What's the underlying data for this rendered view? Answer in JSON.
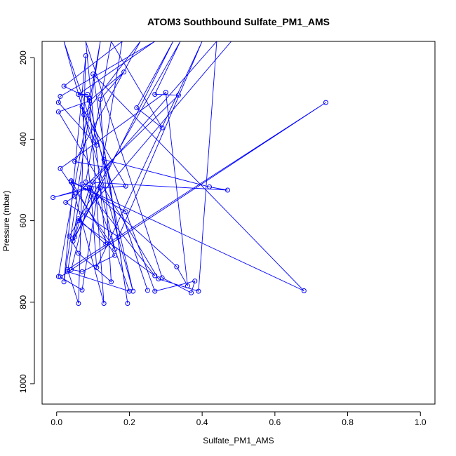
{
  "chart_data": {
    "type": "line",
    "title": "ATOM3 Southbound Sulfate_PM1_AMS",
    "xlabel": "Sulfate_PM1_AMS",
    "ylabel": "Pressure (mbar)",
    "xlim": [
      -0.04,
      1.04
    ],
    "ylim": [
      1050,
      160
    ],
    "y_reversed": true,
    "x_ticks": [
      0.0,
      0.2,
      0.4,
      0.6,
      0.8,
      1.0
    ],
    "x_tick_labels": [
      "0.0",
      "0.2",
      "0.4",
      "0.6",
      "0.8",
      "1.0"
    ],
    "y_ticks": [
      200,
      400,
      600,
      800,
      1000
    ],
    "y_tick_labels": [
      "200",
      "400",
      "600",
      "800",
      "1000"
    ],
    "grid": false,
    "series_color": "#0000ff",
    "series": [
      {
        "marker": "open-circle",
        "points": [
          [
            0.005,
            737
          ],
          [
            0.12,
            160
          ],
          [
            0.02,
            750
          ],
          [
            0.08,
            195
          ],
          [
            0.06,
            803
          ],
          [
            0.03,
            720
          ],
          [
            0.74,
            310
          ],
          [
            0.01,
            738
          ],
          [
            0.07,
            770
          ],
          [
            0.18,
            160
          ],
          [
            0.02,
            270
          ],
          [
            0.09,
            300
          ],
          [
            0.13,
            803
          ],
          [
            0.04,
            505
          ],
          [
            0.68,
            772
          ],
          [
            0.1,
            240
          ],
          [
            0.195,
            803
          ],
          [
            0.14,
            470
          ],
          [
            0.05,
            455
          ],
          [
            0.23,
            160
          ],
          [
            0.075,
            340
          ],
          [
            0.11,
            415
          ],
          [
            0.005,
            310
          ],
          [
            0.01,
            295
          ],
          [
            0.27,
            160
          ],
          [
            0.06,
            290
          ],
          [
            0.085,
            290
          ],
          [
            0.21,
            773
          ],
          [
            0.02,
            160
          ],
          [
            0.25,
            771
          ],
          [
            0.13,
            450
          ],
          [
            0.42,
            517
          ],
          [
            0.47,
            525
          ],
          [
            0.08,
            505
          ],
          [
            0.15,
            160
          ],
          [
            0.29,
            372
          ],
          [
            0.22,
            323
          ],
          [
            0.32,
            160
          ],
          [
            0.05,
            640
          ],
          [
            0.09,
            520
          ],
          [
            0.33,
            713
          ],
          [
            0.36,
            760
          ],
          [
            0.3,
            285
          ],
          [
            0.01,
            472
          ],
          [
            0.16,
            670
          ],
          [
            0.12,
            520
          ],
          [
            0.19,
            515
          ],
          [
            0.07,
            320
          ],
          [
            0.095,
            540
          ],
          [
            0.11,
            715
          ],
          [
            0.4,
            160
          ],
          [
            0.17,
            640
          ],
          [
            0.025,
            555
          ],
          [
            0.05,
            540
          ],
          [
            0.335,
            292
          ],
          [
            0.27,
            290
          ],
          [
            0.34,
            160
          ],
          [
            0.035,
            638
          ],
          [
            0.06,
            680
          ],
          [
            0.15,
            750
          ],
          [
            0.12,
            302
          ],
          [
            0.185,
            235
          ],
          [
            0.09,
            306
          ],
          [
            0.005,
            333
          ],
          [
            0.28,
            743
          ],
          [
            0.39,
            773
          ],
          [
            0.44,
            160
          ],
          [
            0.1,
            505
          ],
          [
            0.04,
            720
          ],
          [
            0.07,
            725
          ],
          [
            0.16,
            685
          ],
          [
            0.04,
            502
          ],
          [
            0.19,
            578
          ],
          [
            0.27,
            773
          ],
          [
            0.38,
            748
          ],
          [
            0.37,
            777
          ],
          [
            0.29,
            740
          ],
          [
            0.08,
            160
          ],
          [
            0.135,
            658
          ],
          [
            0.06,
            595
          ],
          [
            0.045,
            650
          ],
          [
            0.12,
            520
          ],
          [
            0.07,
            510
          ],
          [
            0.03,
            725
          ],
          [
            0.2,
            773
          ],
          [
            0.11,
            542
          ],
          [
            0.095,
            520
          ],
          [
            -0.01,
            543
          ],
          [
            0.08,
            520
          ],
          [
            0.27,
            735
          ],
          [
            0.06,
            600
          ],
          [
            0.48,
            160
          ]
        ]
      }
    ]
  }
}
